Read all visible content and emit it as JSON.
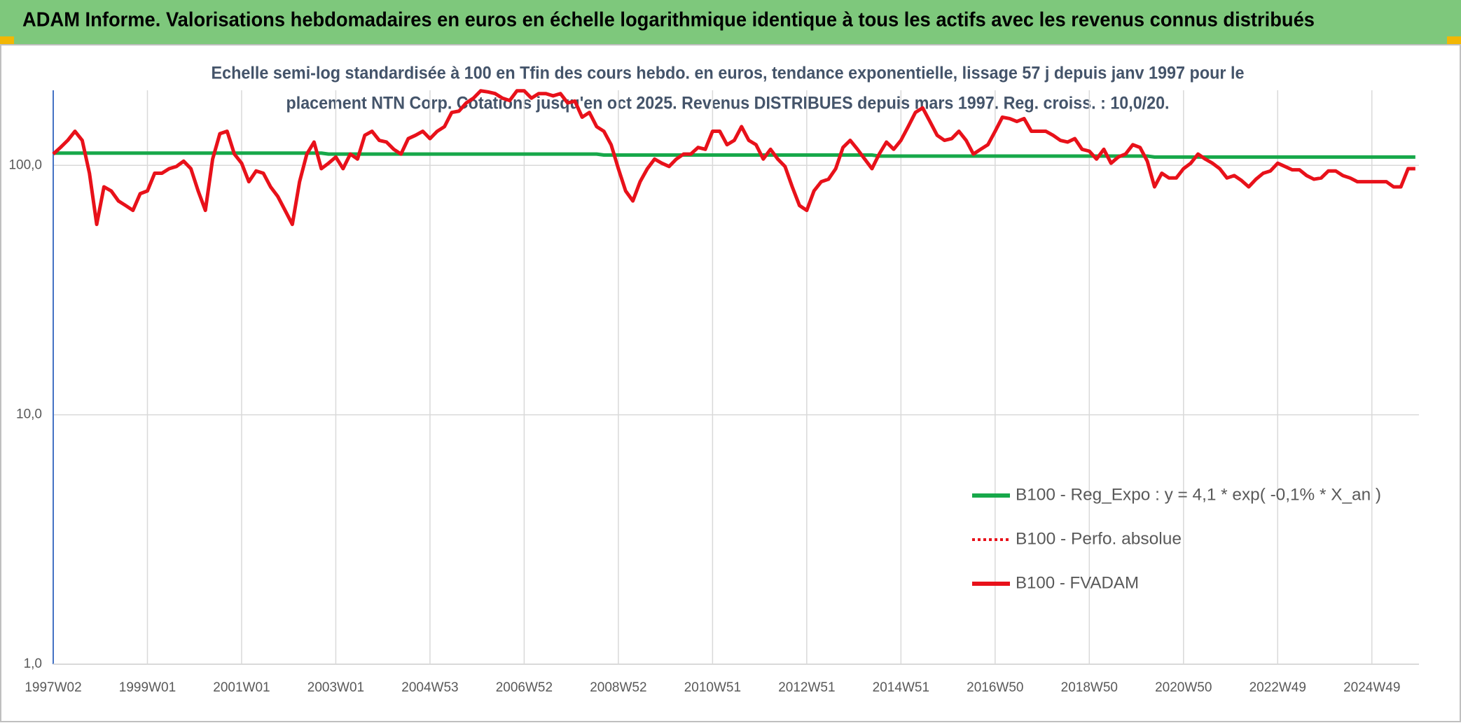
{
  "chart_data": {
    "type": "line",
    "title": "ADAM Informe. Valorisations hebdomadaires en euros en échelle logarithmique identique à tous les actifs avec les revenus connus distribués",
    "subtitle": [
      "Echelle semi-log standardisée à 100 en Tfin des cours hebdo. en euros, tendance exponentielle, lissage 57 j depuis janv 1997 pour le",
      "placement NTN Corp. Cotations jusqu'en oct 2025. Revenus DISTRIBUES depuis mars 1997. Reg. croiss. : 10,0/20."
    ],
    "categories": [
      "1997W02",
      null,
      null,
      null,
      null,
      null,
      null,
      null,
      null,
      null,
      null,
      null,
      null,
      "1999W01",
      null,
      null,
      null,
      null,
      null,
      null,
      null,
      null,
      null,
      null,
      null,
      null,
      "2001W01",
      null,
      null,
      null,
      null,
      null,
      null,
      null,
      null,
      null,
      null,
      null,
      null,
      "2003W01",
      null,
      null,
      null,
      null,
      null,
      null,
      null,
      null,
      null,
      null,
      null,
      null,
      "2004W53",
      null,
      null,
      null,
      null,
      null,
      null,
      null,
      null,
      null,
      null,
      null,
      null,
      "2006W52",
      null,
      null,
      null,
      null,
      null,
      null,
      null,
      null,
      null,
      null,
      null,
      null,
      "2008W52",
      null,
      null,
      null,
      null,
      null,
      null,
      null,
      null,
      null,
      null,
      null,
      null,
      "2010W51",
      null,
      null,
      null,
      null,
      null,
      null,
      null,
      null,
      null,
      null,
      null,
      null,
      "2012W51",
      null,
      null,
      null,
      null,
      null,
      null,
      null,
      null,
      null,
      null,
      null,
      null,
      "2014W51",
      null,
      null,
      null,
      null,
      null,
      null,
      null,
      null,
      null,
      null,
      null,
      null,
      "2016W50",
      null,
      null,
      null,
      null,
      null,
      null,
      null,
      null,
      null,
      null,
      null,
      null,
      "2018W50",
      null,
      null,
      null,
      null,
      null,
      null,
      null,
      null,
      null,
      null,
      null,
      null,
      "2020W50",
      null,
      null,
      null,
      null,
      null,
      null,
      null,
      null,
      null,
      null,
      null,
      null,
      "2022W49",
      null,
      null,
      null,
      null,
      null,
      null,
      null,
      null,
      null,
      null,
      null,
      null,
      "2024W49",
      null,
      null,
      null,
      null,
      null,
      null
    ],
    "series": [
      {
        "name": "B100 - Reg_Expo : y = 4,1 * exp( -0,1% *  X_an )",
        "color": "#17a84a",
        "style": "solid",
        "values": [
          112,
          112,
          112,
          112,
          112,
          112,
          112,
          112,
          112,
          112,
          112,
          112,
          112,
          112,
          112,
          112,
          112,
          112,
          112,
          112,
          112,
          112,
          112,
          112,
          112,
          112,
          112,
          112,
          112,
          112,
          112,
          112,
          112,
          112,
          112,
          112,
          112,
          112,
          111,
          111,
          111,
          111,
          111,
          111,
          111,
          111,
          111,
          111,
          111,
          111,
          111,
          111,
          111,
          111,
          111,
          111,
          111,
          111,
          111,
          111,
          111,
          111,
          111,
          111,
          111,
          111,
          111,
          111,
          111,
          111,
          111,
          111,
          111,
          111,
          111,
          111,
          110,
          110,
          110,
          110,
          110,
          110,
          110,
          110,
          110,
          110,
          110,
          110,
          110,
          110,
          110,
          110,
          110,
          110,
          110,
          110,
          110,
          110,
          110,
          110,
          110,
          110,
          110,
          110,
          110,
          110,
          110,
          110,
          110,
          110,
          110,
          110,
          110,
          110,
          109,
          109,
          109,
          109,
          109,
          109,
          109,
          109,
          109,
          109,
          109,
          109,
          109,
          109,
          109,
          109,
          109,
          109,
          109,
          109,
          109,
          109,
          109,
          109,
          109,
          109,
          109,
          109,
          109,
          109,
          109,
          109,
          109,
          109,
          109,
          109,
          109,
          109,
          108,
          108,
          108,
          108,
          108,
          108,
          108,
          108,
          108,
          108,
          108,
          108,
          108,
          108,
          108,
          108,
          108,
          108,
          108,
          108,
          108,
          108,
          108,
          108,
          108,
          108,
          108,
          108,
          108,
          108,
          108,
          108,
          108,
          108,
          108,
          108,
          108
        ]
      },
      {
        "name": "B100 - Perfo. absolue",
        "color": "#e8111a",
        "style": "dotted",
        "values": [
          null,
          null,
          null,
          null,
          null,
          null,
          null,
          null,
          null,
          null,
          null,
          null,
          null,
          null,
          null,
          null,
          null,
          null,
          null,
          null,
          null,
          null,
          null,
          null,
          null,
          null,
          null,
          null,
          null,
          null,
          null,
          null,
          null,
          null,
          null,
          null,
          null,
          null,
          null,
          null,
          null,
          null,
          null,
          null,
          null,
          null,
          null,
          null,
          null,
          null,
          null,
          null,
          null,
          null,
          null,
          null,
          null,
          null,
          null,
          null,
          null,
          null,
          null,
          null,
          null,
          null,
          null,
          null,
          null,
          null,
          null,
          null,
          null,
          null,
          null,
          null,
          null,
          null,
          null,
          null,
          null,
          null,
          null,
          null,
          null,
          null,
          null,
          null,
          null,
          null,
          null,
          null,
          null,
          null,
          null,
          null,
          null,
          null,
          null,
          null,
          null,
          null,
          null,
          null,
          null,
          null,
          null,
          null,
          null,
          null,
          null,
          null,
          null,
          null,
          null,
          null,
          null,
          null,
          null,
          null,
          null,
          null,
          null,
          null,
          null,
          null,
          null,
          null,
          null,
          null,
          null,
          null,
          null,
          null,
          null,
          null,
          null,
          null,
          null,
          null,
          null,
          null,
          null,
          null,
          null,
          null,
          null,
          null,
          null,
          null,
          null,
          null,
          null,
          null,
          null,
          null,
          null,
          null,
          null,
          null,
          null,
          null,
          null,
          null,
          null,
          null,
          null,
          null,
          null,
          null,
          null,
          null,
          null,
          null,
          null,
          null,
          null,
          null,
          null,
          null,
          null,
          null,
          null,
          null,
          null,
          null,
          null,
          null,
          null
        ]
      },
      {
        "name": "B100 - FVADAM",
        "color": "#e8111a",
        "style": "solid",
        "values": [
          111,
          118,
          126,
          137,
          126,
          93,
          58,
          82,
          79,
          72,
          69,
          66,
          77,
          79,
          93,
          93,
          97,
          99,
          104,
          97,
          79,
          66,
          106,
          134,
          137,
          111,
          102,
          86,
          95,
          93,
          82,
          75,
          66,
          58,
          86,
          111,
          124,
          97,
          102,
          108,
          97,
          111,
          106,
          132,
          137,
          126,
          124,
          116,
          111,
          128,
          132,
          137,
          128,
          137,
          143,
          163,
          165,
          178,
          186,
          199,
          197,
          194,
          186,
          182,
          199,
          199,
          186,
          194,
          194,
          190,
          194,
          178,
          181,
          156,
          163,
          143,
          137,
          121,
          97,
          79,
          72,
          86,
          97,
          106,
          102,
          99,
          106,
          111,
          111,
          118,
          116,
          137,
          137,
          121,
          126,
          143,
          126,
          121,
          106,
          116,
          106,
          99,
          82,
          69,
          66,
          79,
          86,
          88,
          97,
          118,
          126,
          116,
          106,
          97,
          111,
          124,
          116,
          126,
          143,
          163,
          170,
          150,
          132,
          126,
          128,
          137,
          126,
          111,
          116,
          121,
          137,
          156,
          154,
          150,
          154,
          137,
          137,
          137,
          132,
          126,
          124,
          128,
          116,
          114,
          106,
          116,
          102,
          108,
          111,
          121,
          118,
          104,
          82,
          93,
          89,
          89,
          97,
          102,
          111,
          106,
          102,
          97,
          89,
          91,
          87,
          82,
          88,
          93,
          95,
          102,
          99,
          96,
          96,
          91,
          88,
          89,
          95,
          95,
          91,
          89,
          86,
          86,
          86,
          86,
          86,
          82,
          82,
          97,
          97
        ]
      }
    ],
    "y_log": true,
    "ylim": [
      1,
      200
    ],
    "yticks": [
      {
        "value": 1,
        "label": "1,0"
      },
      {
        "value": 10,
        "label": "10,0"
      },
      {
        "value": 100,
        "label": "100,0"
      }
    ],
    "grid": true,
    "legend": "right"
  }
}
